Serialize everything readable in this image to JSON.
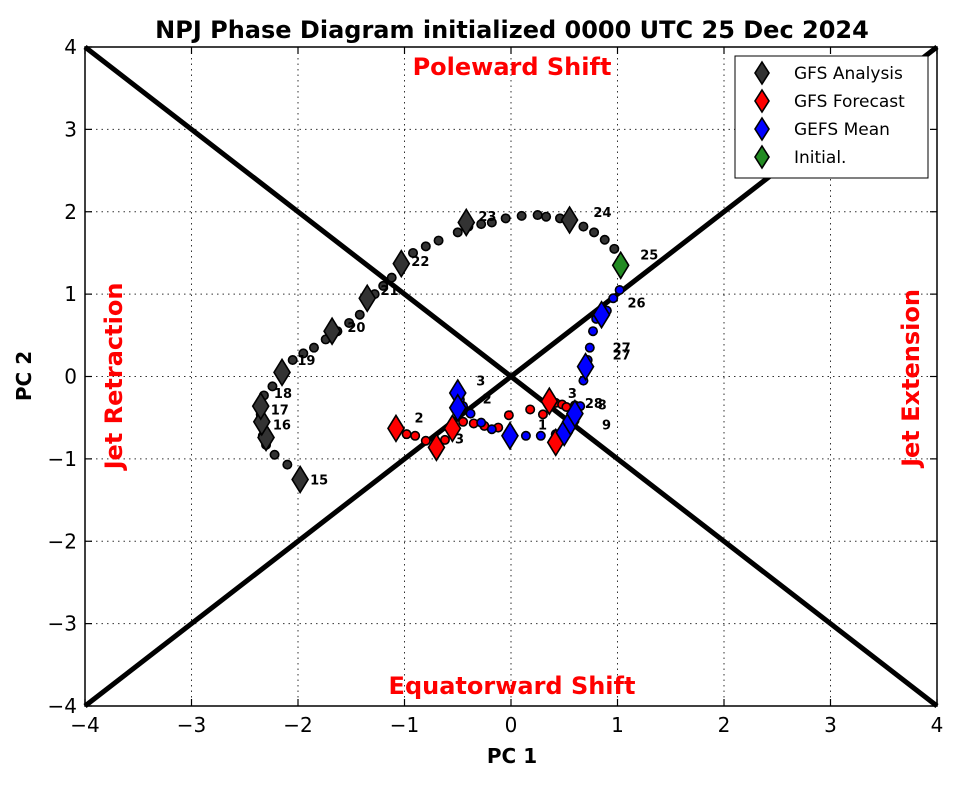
{
  "chart_data": {
    "type": "scatter",
    "title": "NPJ Phase Diagram initialized 0000 UTC 25 Dec 2024",
    "xlabel": "PC 1",
    "ylabel": "PC 2",
    "xlim": [
      -4,
      4
    ],
    "ylim": [
      -4,
      4
    ],
    "xticks": [
      -4,
      -3,
      -2,
      -1,
      0,
      1,
      2,
      3,
      4
    ],
    "yticks": [
      -4,
      -3,
      -2,
      -1,
      0,
      1,
      2,
      3,
      4
    ],
    "xtick_labels": [
      "−4",
      "−3",
      "−2",
      "−1",
      "0",
      "1",
      "2",
      "3",
      "4"
    ],
    "ytick_labels": [
      "−4",
      "−3",
      "−2",
      "−1",
      "0",
      "1",
      "2",
      "3",
      "4"
    ],
    "grid": true,
    "legend_position": "top-right",
    "diagonals": [
      [
        [
          -4,
          4
        ],
        [
          4,
          -4
        ]
      ],
      [
        [
          -4,
          -4
        ],
        [
          4,
          4
        ]
      ]
    ],
    "region_labels": {
      "top": "Poleward Shift",
      "bottom": "Equatorward Shift",
      "left": "Jet Retraction",
      "right": "Jet Extension"
    },
    "legend": [
      {
        "label": "GFS Analysis",
        "color": "#333333"
      },
      {
        "label": "GFS Forecast",
        "color": "#ff0000"
      },
      {
        "label": "GEFS Mean",
        "color": "#0000ff"
      },
      {
        "label": "Initial.",
        "color": "#228b22"
      }
    ],
    "series": [
      {
        "name": "GFS Analysis",
        "color": "#333333",
        "points": [
          [
            -1.98,
            -1.25
          ],
          [
            -2.1,
            -1.07
          ],
          [
            -2.22,
            -0.95
          ],
          [
            -2.3,
            -0.83
          ],
          [
            -2.33,
            -0.72
          ],
          [
            -2.34,
            -0.58
          ],
          [
            -2.35,
            -0.46
          ],
          [
            -2.36,
            -0.35
          ],
          [
            -2.32,
            -0.23
          ],
          [
            -2.24,
            -0.12
          ],
          [
            -2.15,
            0.05
          ],
          [
            -2.05,
            0.2
          ],
          [
            -1.95,
            0.28
          ],
          [
            -1.85,
            0.35
          ],
          [
            -1.74,
            0.45
          ],
          [
            -1.63,
            0.55
          ],
          [
            -1.52,
            0.65
          ],
          [
            -1.42,
            0.75
          ],
          [
            -1.35,
            0.9
          ],
          [
            -1.28,
            1.0
          ],
          [
            -1.2,
            1.1
          ],
          [
            -1.12,
            1.2
          ],
          [
            -1.03,
            1.37
          ],
          [
            -0.92,
            1.5
          ],
          [
            -0.8,
            1.58
          ],
          [
            -0.68,
            1.65
          ],
          [
            -0.5,
            1.75
          ],
          [
            -0.4,
            1.82
          ],
          [
            -0.28,
            1.85
          ],
          [
            -0.18,
            1.87
          ],
          [
            -0.05,
            1.92
          ],
          [
            0.1,
            1.95
          ],
          [
            0.25,
            1.96
          ],
          [
            0.33,
            1.94
          ],
          [
            0.46,
            1.92
          ],
          [
            0.55,
            1.9
          ],
          [
            0.68,
            1.82
          ],
          [
            0.78,
            1.75
          ],
          [
            0.88,
            1.66
          ],
          [
            0.97,
            1.55
          ],
          [
            1.03,
            1.35
          ]
        ],
        "labels": [
          {
            "text": "15",
            "x": -1.98,
            "y": -1.25
          },
          {
            "text": "16",
            "x": -2.33,
            "y": -0.58
          },
          {
            "text": "17",
            "x": -2.35,
            "y": -0.4
          },
          {
            "text": "18",
            "x": -2.32,
            "y": -0.2
          },
          {
            "text": "19",
            "x": -2.1,
            "y": 0.2
          },
          {
            "text": "20",
            "x": -1.63,
            "y": 0.6
          },
          {
            "text": "21",
            "x": -1.32,
            "y": 1.05
          },
          {
            "text": "22",
            "x": -1.03,
            "y": 1.4
          },
          {
            "text": "23",
            "x": -0.4,
            "y": 1.95
          },
          {
            "text": "24",
            "x": 0.68,
            "y": 2.0
          },
          {
            "text": "25",
            "x": 1.12,
            "y": 1.48
          }
        ]
      },
      {
        "name": "GFS Forecast",
        "color": "#ff0000",
        "points": [
          [
            -1.06,
            -0.63
          ],
          [
            -0.98,
            -0.7
          ],
          [
            -0.9,
            -0.72
          ],
          [
            -0.8,
            -0.78
          ],
          [
            -0.7,
            -0.86
          ],
          [
            -0.62,
            -0.77
          ],
          [
            -0.55,
            -0.63
          ],
          [
            -0.45,
            -0.55
          ],
          [
            -0.35,
            -0.57
          ],
          [
            -0.25,
            -0.6
          ],
          [
            -0.12,
            -0.62
          ],
          [
            -0.02,
            -0.47
          ],
          [
            0.18,
            -0.4
          ],
          [
            0.3,
            -0.46
          ],
          [
            0.36,
            -0.28
          ],
          [
            0.42,
            -0.32
          ],
          [
            0.48,
            -0.34
          ],
          [
            0.52,
            -0.37
          ],
          [
            0.44,
            -0.8
          ],
          [
            0.56,
            -0.6
          ],
          [
            0.6,
            -0.35
          ]
        ],
        "labels": [
          {
            "text": "2",
            "x": -1.0,
            "y": -0.5
          },
          {
            "text": "3",
            "x": -0.62,
            "y": -0.75
          },
          {
            "text": "3",
            "x": 0.44,
            "y": -0.2
          },
          {
            "text": "8",
            "x": 0.72,
            "y": -0.34
          }
        ]
      },
      {
        "name": "GEFS Mean",
        "color": "#0000ff",
        "points": [
          [
            -0.5,
            -0.2
          ],
          [
            -0.48,
            -0.28
          ],
          [
            -0.45,
            -0.36
          ],
          [
            -0.38,
            -0.45
          ],
          [
            -0.28,
            -0.56
          ],
          [
            -0.18,
            -0.64
          ],
          [
            -0.01,
            -0.72
          ],
          [
            0.14,
            -0.72
          ],
          [
            0.28,
            -0.72
          ],
          [
            0.42,
            -0.7
          ],
          [
            0.5,
            -0.68
          ],
          [
            0.54,
            -0.6
          ],
          [
            0.58,
            -0.52
          ],
          [
            0.62,
            -0.44
          ],
          [
            0.65,
            -0.36
          ],
          [
            0.68,
            -0.05
          ],
          [
            0.7,
            0.08
          ],
          [
            0.72,
            0.2
          ],
          [
            0.74,
            0.35
          ],
          [
            0.77,
            0.55
          ],
          [
            0.8,
            0.7
          ],
          [
            0.85,
            0.75
          ],
          [
            0.9,
            0.8
          ],
          [
            0.96,
            0.95
          ],
          [
            1.02,
            1.05
          ]
        ],
        "labels": [
          {
            "text": "1",
            "x": 0.16,
            "y": -0.58
          },
          {
            "text": "2",
            "x": -0.36,
            "y": -0.27
          },
          {
            "text": "3",
            "x": -0.42,
            "y": -0.05
          },
          {
            "text": "9",
            "x": 0.76,
            "y": -0.58
          },
          {
            "text": "26",
            "x": 1.0,
            "y": 0.9
          },
          {
            "text": "27",
            "x": 0.86,
            "y": 0.35
          },
          {
            "text": "27",
            "x": 0.86,
            "y": 0.27
          },
          {
            "text": "28",
            "x": 0.6,
            "y": -0.32
          }
        ]
      },
      {
        "name": "Initial.",
        "color": "#228b22",
        "points": [
          [
            1.03,
            1.35
          ]
        ],
        "labels": []
      }
    ],
    "diamond_markers": [
      {
        "x": -1.98,
        "y": -1.25,
        "color": "#333333"
      },
      {
        "x": -2.3,
        "y": -0.74,
        "color": "#333333"
      },
      {
        "x": -2.34,
        "y": -0.55,
        "color": "#333333"
      },
      {
        "x": -2.35,
        "y": -0.36,
        "color": "#333333"
      },
      {
        "x": -2.15,
        "y": 0.05,
        "color": "#333333"
      },
      {
        "x": -1.68,
        "y": 0.55,
        "color": "#333333"
      },
      {
        "x": -1.35,
        "y": 0.95,
        "color": "#333333"
      },
      {
        "x": -1.03,
        "y": 1.37,
        "color": "#333333"
      },
      {
        "x": -0.42,
        "y": 1.87,
        "color": "#333333"
      },
      {
        "x": 0.55,
        "y": 1.9,
        "color": "#333333"
      },
      {
        "x": -1.08,
        "y": -0.63,
        "color": "#ff0000"
      },
      {
        "x": -0.7,
        "y": -0.86,
        "color": "#ff0000"
      },
      {
        "x": -0.55,
        "y": -0.63,
        "color": "#ff0000"
      },
      {
        "x": 0.36,
        "y": -0.3,
        "color": "#ff0000"
      },
      {
        "x": 0.42,
        "y": -0.8,
        "color": "#ff0000"
      },
      {
        "x": -0.5,
        "y": -0.2,
        "color": "#0000ff"
      },
      {
        "x": -0.5,
        "y": -0.38,
        "color": "#0000ff"
      },
      {
        "x": -0.01,
        "y": -0.72,
        "color": "#0000ff"
      },
      {
        "x": 0.5,
        "y": -0.68,
        "color": "#0000ff"
      },
      {
        "x": 0.56,
        "y": -0.55,
        "color": "#0000ff"
      },
      {
        "x": 0.6,
        "y": -0.45,
        "color": "#0000ff"
      },
      {
        "x": 0.7,
        "y": 0.12,
        "color": "#0000ff"
      },
      {
        "x": 0.85,
        "y": 0.75,
        "color": "#0000ff"
      },
      {
        "x": 1.03,
        "y": 1.35,
        "color": "#228b22"
      }
    ]
  }
}
